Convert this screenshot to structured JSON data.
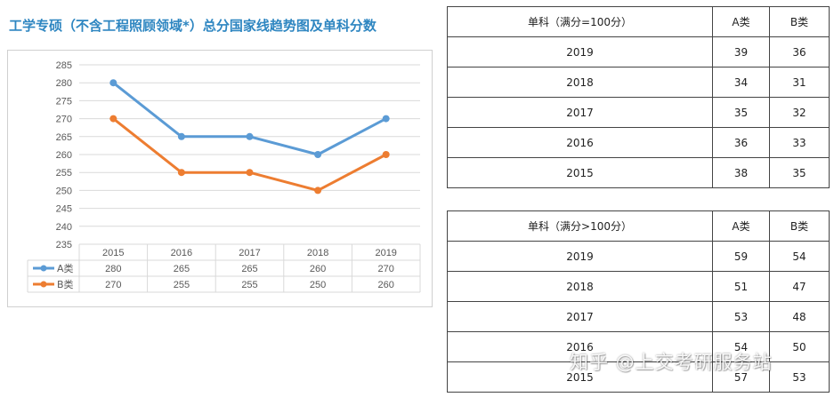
{
  "title": "工学专硕（不含工程照顾领域*）总分国家线趋势图及单科分数",
  "chart_data": {
    "type": "line",
    "categories": [
      "2015",
      "2016",
      "2017",
      "2018",
      "2019"
    ],
    "series": [
      {
        "name": "A类",
        "values": [
          280,
          265,
          265,
          260,
          270
        ],
        "color": "#5b9bd5"
      },
      {
        "name": "B类",
        "values": [
          270,
          255,
          255,
          250,
          260
        ],
        "color": "#ed7d31"
      }
    ],
    "y_ticks": [
      235,
      240,
      245,
      250,
      255,
      260,
      265,
      270,
      275,
      280,
      285
    ],
    "ylim": [
      235,
      285
    ],
    "grid": true,
    "data_table": true
  },
  "table1": {
    "header": [
      "单科（满分=100分）",
      "A类",
      "B类"
    ],
    "rows": [
      [
        "2019",
        "39",
        "36"
      ],
      [
        "2018",
        "34",
        "31"
      ],
      [
        "2017",
        "35",
        "32"
      ],
      [
        "2016",
        "36",
        "33"
      ],
      [
        "2015",
        "38",
        "35"
      ]
    ]
  },
  "table2": {
    "header": [
      "单科（满分>100分）",
      "A类",
      "B类"
    ],
    "rows": [
      [
        "2019",
        "59",
        "54"
      ],
      [
        "2018",
        "51",
        "47"
      ],
      [
        "2017",
        "53",
        "48"
      ],
      [
        "2016",
        "54",
        "50"
      ],
      [
        "2015",
        "57",
        "53"
      ]
    ]
  },
  "watermark": "知乎 @上交考研服务站"
}
